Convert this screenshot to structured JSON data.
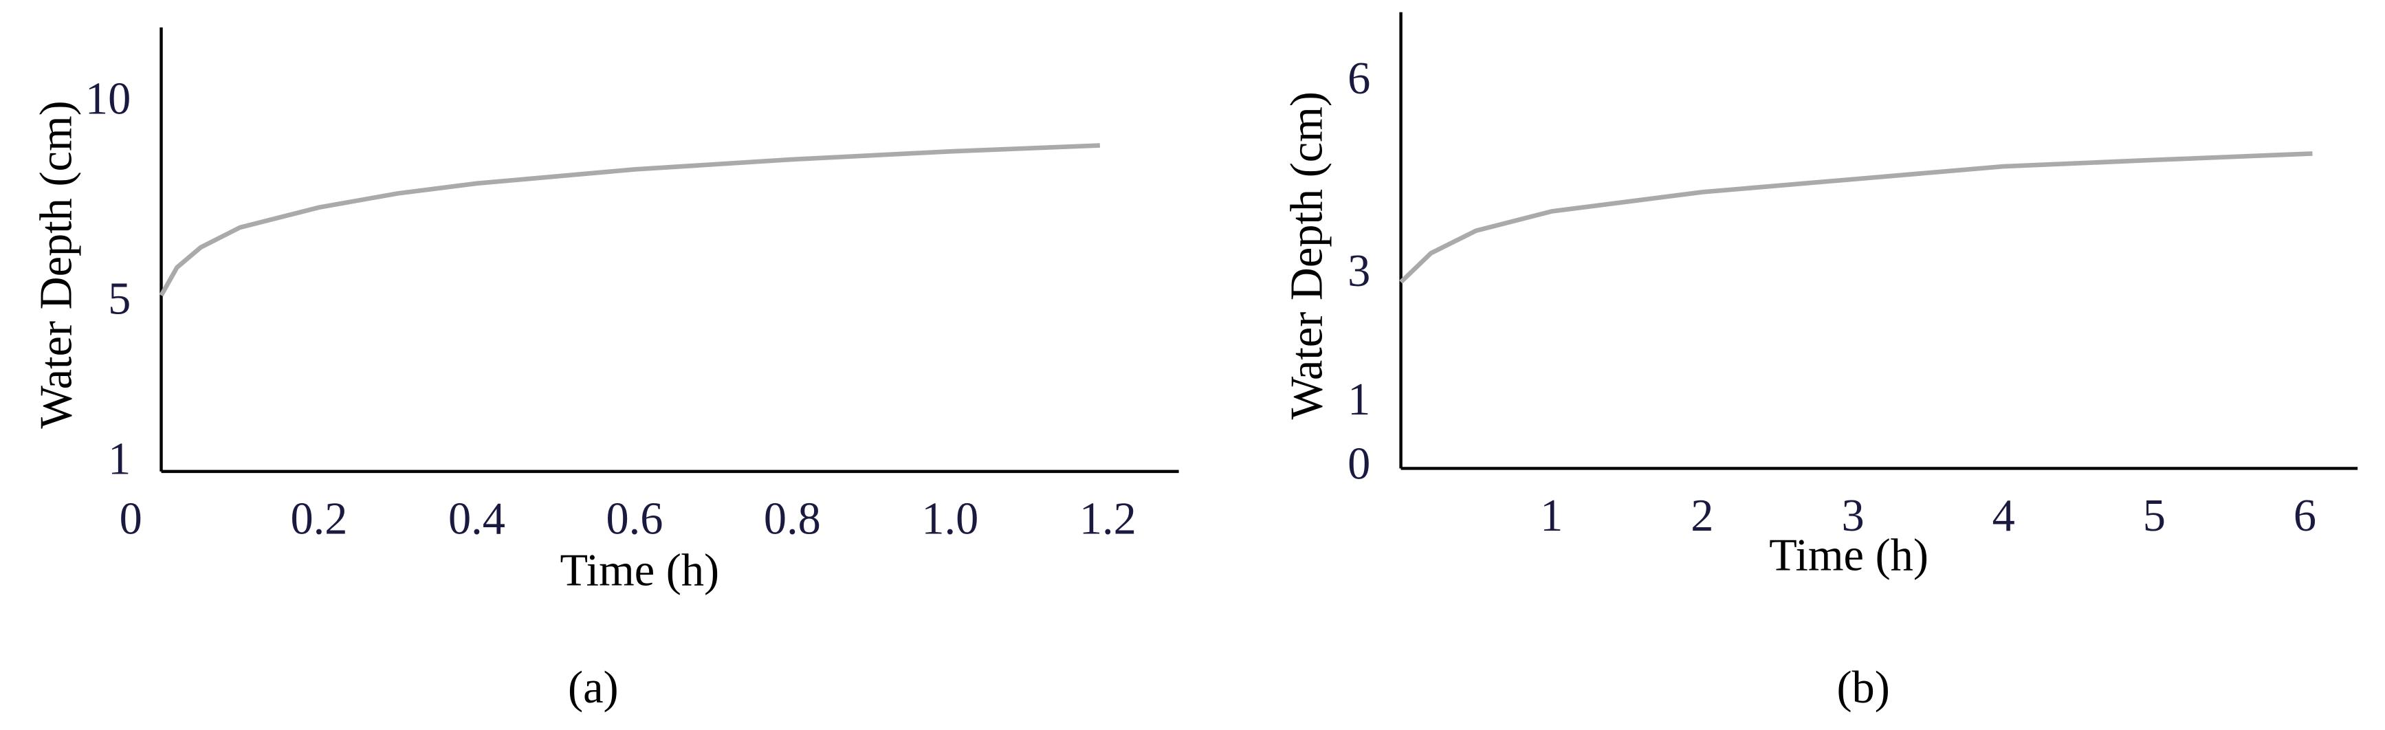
{
  "chart_data": [
    {
      "type": "line",
      "caption": "(a)",
      "xlabel": "Time (h)",
      "ylabel": "Water Depth (cm)",
      "x": [
        0,
        0.02,
        0.05,
        0.1,
        0.2,
        0.3,
        0.4,
        0.6,
        0.8,
        1.0,
        1.19
      ],
      "series": [
        {
          "name": null,
          "color": "#aaaaaa",
          "values": [
            5.2,
            5.9,
            6.4,
            6.9,
            7.4,
            7.75,
            8.0,
            8.35,
            8.6,
            8.8,
            8.95
          ]
        }
      ],
      "xlim": [
        0,
        1.29
      ],
      "ylim": [
        0.8,
        11.9
      ],
      "xticks": [
        0,
        0.2,
        0.4,
        0.6,
        0.8,
        {
          "value": 1,
          "label": "1.0"
        },
        1.2
      ],
      "yticks": [
        1,
        5,
        10
      ]
    },
    {
      "type": "line",
      "caption": "(b)",
      "xlabel": "Time (h)",
      "ylabel": "Water Depth (cm)",
      "x": [
        0,
        0.2,
        0.5,
        1,
        2,
        3,
        4,
        5,
        6.05
      ],
      "series": [
        {
          "name": null,
          "color": "#aaaaaa",
          "values": [
            2.9,
            3.35,
            3.7,
            4.0,
            4.3,
            4.5,
            4.7,
            4.8,
            4.9
          ]
        }
      ],
      "xlim": [
        0,
        6.35
      ],
      "ylim": [
        0,
        7.1
      ],
      "xticks": [
        1,
        2,
        3,
        4,
        5,
        6
      ],
      "yticks": [
        0,
        1,
        3,
        6
      ]
    }
  ]
}
